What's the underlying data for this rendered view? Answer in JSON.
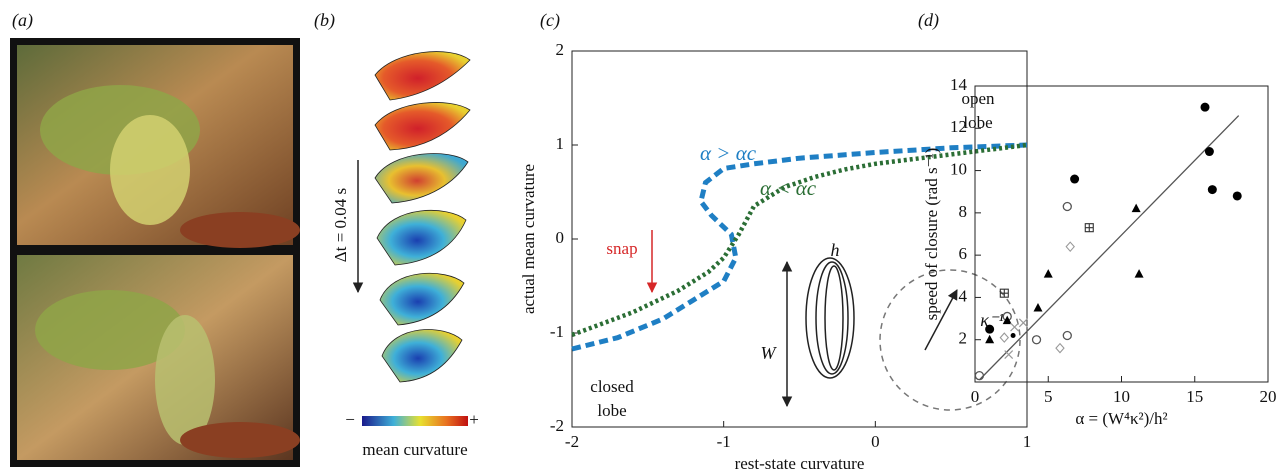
{
  "panel_labels": [
    "(a)",
    "(b)",
    "(c)",
    "(d)"
  ],
  "panel_b": {
    "time_step": "Δt = 0.04 s",
    "colorbar_min": "−",
    "colorbar_max": "+",
    "colorbar_label": "mean curvature"
  },
  "chart_data": [
    {
      "type": "line",
      "xlabel": "rest-state curvature",
      "ylabel": "actual mean curvature",
      "xlim": [
        -2,
        1
      ],
      "ylim": [
        -2,
        2
      ],
      "xticks": [
        -2,
        -1,
        0,
        1
      ],
      "yticks": [
        -2,
        -1,
        0,
        1,
        2
      ],
      "series": [
        {
          "name": "α > αc",
          "color": "#1f7fc4",
          "style": "dashed",
          "x": [
            -2,
            -1.7,
            -1.4,
            -1.2,
            -1.0,
            -0.92,
            -0.95,
            -1.08,
            -1.15,
            -1.12,
            -1.0,
            -0.8,
            -0.5,
            0,
            0.5,
            1
          ],
          "values": [
            -1.17,
            -1.05,
            -0.85,
            -0.65,
            -0.45,
            -0.2,
            0.05,
            0.25,
            0.4,
            0.6,
            0.75,
            0.8,
            0.86,
            0.92,
            0.97,
            1.0
          ]
        },
        {
          "name": "α < αc",
          "color": "#2b6e35",
          "style": "dotted",
          "x": [
            -2,
            -1.6,
            -1.3,
            -1.1,
            -1.0,
            -0.9,
            -0.8,
            -0.6,
            -0.4,
            -0.2,
            0,
            0.5,
            1
          ],
          "values": [
            -1.02,
            -0.78,
            -0.55,
            -0.35,
            -0.2,
            0.05,
            0.35,
            0.55,
            0.66,
            0.74,
            0.8,
            0.9,
            1.0
          ]
        }
      ],
      "annotations": {
        "open_lobe": [
          "open",
          "lobe"
        ],
        "closed_lobe": [
          "closed",
          "lobe"
        ],
        "snap": "snap",
        "h": "h",
        "W": "W",
        "kappa": "κ⁻¹"
      }
    },
    {
      "type": "scatter",
      "xlabel": "α = (W⁴κ²)/h²",
      "ylabel": "speed of closure (rad s⁻¹)",
      "xlim": [
        0,
        20
      ],
      "ylim": [
        0,
        14
      ],
      "xticks": [
        0,
        5,
        10,
        15,
        20
      ],
      "yticks": [
        2,
        4,
        6,
        8,
        10,
        12,
        14
      ],
      "series": [
        {
          "marker": "filled-circle",
          "color": "#000000",
          "x": [
            1,
            6.8,
            15.7,
            16,
            16.2,
            17.9,
            2.6
          ],
          "values": [
            2.5,
            9.6,
            13,
            10.9,
            9.1,
            8.8,
            2.2
          ]
        },
        {
          "marker": "open-circle",
          "color": "#555555",
          "x": [
            0.3,
            2.2,
            4.2,
            6.3,
            6.3
          ],
          "values": [
            0.3,
            3.1,
            2.0,
            8.3,
            2.2
          ]
        },
        {
          "marker": "triangle",
          "color": "#000000",
          "x": [
            1,
            2.2,
            5,
            4.3,
            11,
            11.2
          ],
          "values": [
            2,
            2.9,
            5.1,
            3.5,
            8.2,
            5.1
          ]
        },
        {
          "marker": "square-plus",
          "color": "#333333",
          "x": [
            2,
            7.8
          ],
          "values": [
            4.2,
            7.3
          ]
        },
        {
          "marker": "cross",
          "color": "#999999",
          "x": [
            2.3,
            2.7,
            3.3
          ],
          "values": [
            1.3,
            2.6,
            2.8
          ]
        },
        {
          "marker": "diamond",
          "color": "#999999",
          "x": [
            2,
            5.8,
            6.5
          ],
          "values": [
            2.1,
            1.6,
            6.4
          ]
        }
      ],
      "fit": {
        "color": "#555555",
        "x": [
          0.3,
          18
        ],
        "values": [
          0.1,
          12.6
        ]
      }
    }
  ]
}
